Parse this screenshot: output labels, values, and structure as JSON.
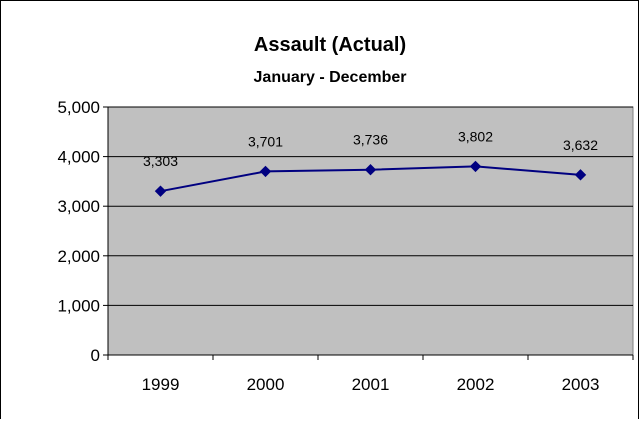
{
  "chart_data": {
    "type": "line",
    "title": "Assault (Actual)",
    "subtitle": "January - December",
    "categories": [
      "1999",
      "2000",
      "2001",
      "2002",
      "2003"
    ],
    "series": [
      {
        "values": [
          3303,
          3701,
          3736,
          3802,
          3632
        ],
        "color": "#000080"
      }
    ],
    "data_labels": [
      "3,303",
      "3,701",
      "3,736",
      "3,802",
      "3,632"
    ],
    "ylim": [
      0,
      5000
    ],
    "y_ticks": [
      0,
      1000,
      2000,
      3000,
      4000,
      5000
    ],
    "y_tick_labels": [
      "0",
      "1,000",
      "2,000",
      "3,000",
      "4,000",
      "5,000"
    ],
    "grid": true,
    "legend": "none",
    "plot_background": "#c0c0c0",
    "marker": "diamond"
  }
}
